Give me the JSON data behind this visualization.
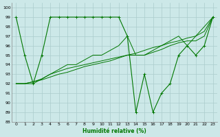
{
  "xlabel": "Humidité relative (%)",
  "xlim": [
    -0.5,
    23.5
  ],
  "ylim": [
    88,
    100.5
  ],
  "yticks": [
    88,
    89,
    90,
    91,
    92,
    93,
    94,
    95,
    96,
    97,
    98,
    99,
    100
  ],
  "xticks": [
    0,
    1,
    2,
    3,
    4,
    5,
    6,
    7,
    8,
    9,
    10,
    11,
    12,
    13,
    14,
    15,
    16,
    17,
    18,
    19,
    20,
    21,
    22,
    23
  ],
  "xtick_labels": [
    "0",
    "1",
    "2",
    "3",
    "4",
    "5",
    "6",
    "7",
    "8",
    "9",
    "10",
    "11",
    "12",
    "13",
    "14",
    "15",
    "16",
    "17",
    "18",
    "19",
    "20",
    "21",
    "22",
    "23"
  ],
  "bg_color": "#cce8e8",
  "grid_color": "#aacccc",
  "line_color": "#007700",
  "line1_x": [
    0,
    1,
    2,
    3,
    4,
    5,
    6,
    7,
    8,
    9,
    10,
    11,
    12,
    13,
    14,
    15,
    16,
    17,
    18,
    19,
    20,
    21,
    22,
    23
  ],
  "line1_y": [
    99,
    95,
    92,
    95,
    99,
    99,
    99,
    99,
    99,
    99,
    99,
    99,
    99,
    97,
    89,
    93,
    89,
    91,
    92,
    95,
    96,
    95,
    96,
    99
  ],
  "line2_x": [
    0,
    1,
    2,
    3,
    4,
    5,
    6,
    7,
    8,
    9,
    10,
    11,
    12,
    13,
    14,
    15,
    16,
    17,
    18,
    19,
    20,
    21,
    22,
    23
  ],
  "line2_y": [
    92,
    92,
    92,
    92.5,
    93,
    93.5,
    94,
    94,
    94.5,
    95,
    95,
    95.5,
    96,
    97,
    95,
    95,
    95.5,
    96,
    96.5,
    97,
    96,
    97,
    98,
    99
  ],
  "line3_x": [
    0,
    1,
    2,
    3,
    4,
    5,
    6,
    7,
    8,
    9,
    10,
    11,
    12,
    13,
    14,
    15,
    16,
    17,
    18,
    19,
    20,
    21,
    22,
    23
  ],
  "line3_y": [
    92,
    92,
    92.2,
    92.5,
    93,
    93.3,
    93.6,
    93.8,
    94,
    94.2,
    94.4,
    94.6,
    94.8,
    95,
    95,
    95,
    95.3,
    95.6,
    96,
    96.3,
    96.5,
    96.5,
    97,
    99
  ],
  "line4_x": [
    0,
    1,
    2,
    3,
    4,
    5,
    6,
    7,
    8,
    9,
    10,
    11,
    12,
    13,
    14,
    15,
    16,
    17,
    18,
    19,
    20,
    21,
    22,
    23
  ],
  "line4_y": [
    92,
    92,
    92.2,
    92.4,
    92.7,
    93,
    93.2,
    93.5,
    93.8,
    94,
    94.2,
    94.4,
    94.7,
    95,
    95.2,
    95.5,
    95.8,
    96,
    96.3,
    96.5,
    96.8,
    97,
    97.5,
    99
  ]
}
